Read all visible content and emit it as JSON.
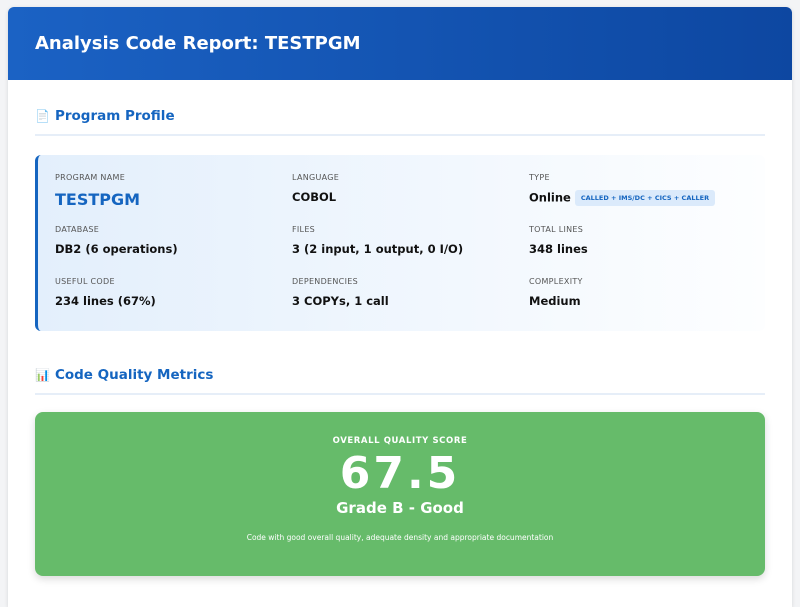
{
  "header": {
    "title": "Analysis Code Report: TESTPGM"
  },
  "profile": {
    "title": "Program Profile",
    "icon": "page-icon",
    "fields": [
      {
        "label": "PROGRAM NAME",
        "value": "TESTPGM"
      },
      {
        "label": "LANGUAGE",
        "value": "COBOL"
      },
      {
        "label": "TYPE",
        "value": "Online",
        "badge": "CALLED + IMS/DC + CICS + CALLER"
      },
      {
        "label": "DATABASE",
        "value": "DB2 (6 operations)"
      },
      {
        "label": "FILES",
        "value": "3 (2 input, 1 output, 0 I/O)"
      },
      {
        "label": "TOTAL LINES",
        "value": "348 lines"
      },
      {
        "label": "USEFUL CODE",
        "value": "234 lines (67%)"
      },
      {
        "label": "DEPENDENCIES",
        "value": "3 COPYs, 1 call"
      },
      {
        "label": "COMPLEXITY",
        "value": "Medium"
      }
    ]
  },
  "quality": {
    "title": "Code Quality Metrics",
    "icon": "bar-chart-icon",
    "score_label": "OVERALL QUALITY SCORE",
    "score": "67.5",
    "grade": "Grade B - Good",
    "description": "Code with good overall quality, adequate density and appropriate documentation",
    "color": "#66bb6a"
  }
}
